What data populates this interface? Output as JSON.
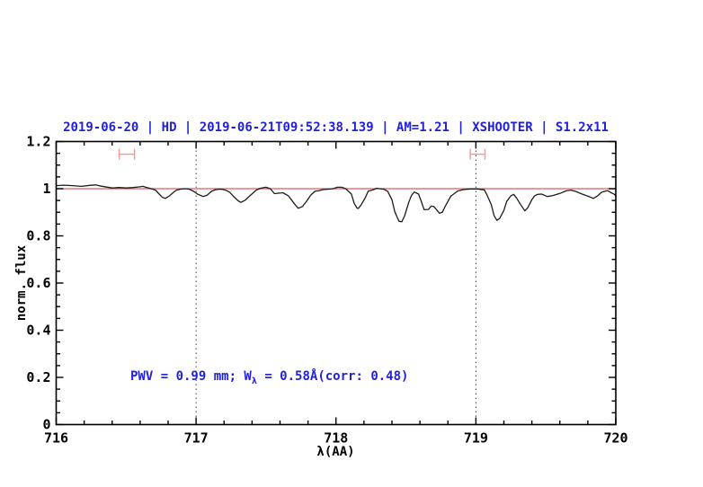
{
  "chart_data": {
    "type": "line",
    "title": "2019-06-20 | HD | 2019-06-21T09:52:38.139 | AM=1.21 | XSHOOTER | S1.2x11",
    "xlabel": "λ(AA)",
    "ylabel": "norm. flux",
    "xlim": [
      716,
      720
    ],
    "ylim": [
      0,
      1.2
    ],
    "x_major_ticks": [
      716,
      717,
      718,
      719,
      720
    ],
    "x_tick_labels": [
      "716",
      "717",
      "718",
      "719",
      "720"
    ],
    "x_minor_step": 0.2,
    "y_major_ticks": [
      0,
      0.2,
      0.4,
      0.6,
      0.8,
      1,
      1.2
    ],
    "y_tick_labels": [
      "0",
      "0.2",
      "0.4",
      "0.6",
      "0.8",
      "1",
      "1.2"
    ],
    "y_minor_step": 0.05,
    "grid": "off",
    "dotted_guides_x": [
      717,
      719
    ],
    "reference_line_y": 1.0,
    "band_markers": [
      {
        "x_start": 716.45,
        "x_end": 716.56,
        "y": 1.146,
        "cap_half_height": 0.023
      },
      {
        "x_start": 718.96,
        "x_end": 719.065,
        "y": 1.146,
        "cap_half_height": 0.023
      }
    ],
    "annotation": {
      "prefix": "PWV = 0.99 mm; W",
      "subscript": "λ",
      "suffix": " = 0.58Å(corr: 0.48)"
    },
    "colors": {
      "title_text": "#2121d9",
      "annotation_text": "#2121d9",
      "spectrum": "#1c1c1c",
      "reference_line": "#e05c5c",
      "band_marker": "#f29c9c",
      "axis": "#000000",
      "guide": "#3c3c3c"
    },
    "series": [
      {
        "name": "spectrum",
        "points": [
          [
            716.0,
            1.013
          ],
          [
            716.05,
            1.015
          ],
          [
            716.12,
            1.013
          ],
          [
            716.18,
            1.01
          ],
          [
            716.24,
            1.014
          ],
          [
            716.28,
            1.016
          ],
          [
            716.31,
            1.012
          ],
          [
            716.36,
            1.007
          ],
          [
            716.4,
            1.003
          ],
          [
            716.45,
            1.005
          ],
          [
            716.5,
            1.003
          ],
          [
            716.55,
            1.005
          ],
          [
            716.6,
            1.008
          ],
          [
            716.62,
            1.01
          ],
          [
            716.64,
            1.006
          ],
          [
            716.68,
            1.0
          ],
          [
            716.71,
            0.994
          ],
          [
            716.73,
            0.981
          ],
          [
            716.76,
            0.963
          ],
          [
            716.78,
            0.959
          ],
          [
            716.81,
            0.97
          ],
          [
            716.84,
            0.985
          ],
          [
            716.86,
            0.994
          ],
          [
            716.89,
            0.998
          ],
          [
            716.92,
            1.0
          ],
          [
            716.95,
            0.998
          ],
          [
            716.98,
            0.99
          ],
          [
            717.01,
            0.977
          ],
          [
            717.05,
            0.967
          ],
          [
            717.08,
            0.973
          ],
          [
            717.11,
            0.989
          ],
          [
            717.14,
            0.996
          ],
          [
            717.18,
            0.998
          ],
          [
            717.21,
            0.994
          ],
          [
            717.24,
            0.985
          ],
          [
            717.27,
            0.966
          ],
          [
            717.3,
            0.949
          ],
          [
            717.32,
            0.942
          ],
          [
            717.35,
            0.951
          ],
          [
            717.39,
            0.973
          ],
          [
            717.43,
            0.994
          ],
          [
            717.46,
            1.002
          ],
          [
            717.5,
            1.006
          ],
          [
            717.53,
            1.0
          ],
          [
            717.56,
            0.979
          ],
          [
            717.59,
            0.981
          ],
          [
            717.62,
            0.983
          ],
          [
            717.66,
            0.97
          ],
          [
            717.7,
            0.938
          ],
          [
            717.73,
            0.917
          ],
          [
            717.76,
            0.924
          ],
          [
            717.79,
            0.947
          ],
          [
            717.82,
            0.973
          ],
          [
            717.85,
            0.989
          ],
          [
            717.88,
            0.992
          ],
          [
            717.91,
            0.996
          ],
          [
            717.95,
            0.998
          ],
          [
            717.98,
            1.0
          ],
          [
            718.01,
            1.006
          ],
          [
            718.04,
            1.006
          ],
          [
            718.07,
            1.0
          ],
          [
            718.11,
            0.977
          ],
          [
            718.13,
            0.938
          ],
          [
            718.15,
            0.918
          ],
          [
            718.16,
            0.916
          ],
          [
            718.18,
            0.932
          ],
          [
            718.21,
            0.962
          ],
          [
            718.23,
            0.989
          ],
          [
            718.27,
            0.996
          ],
          [
            718.29,
            1.002
          ],
          [
            718.31,
            1.0
          ],
          [
            718.34,
            0.998
          ],
          [
            718.37,
            0.989
          ],
          [
            718.4,
            0.953
          ],
          [
            718.42,
            0.903
          ],
          [
            718.45,
            0.862
          ],
          [
            718.47,
            0.86
          ],
          [
            718.49,
            0.884
          ],
          [
            718.52,
            0.942
          ],
          [
            718.54,
            0.972
          ],
          [
            718.56,
            0.986
          ],
          [
            718.59,
            0.977
          ],
          [
            718.61,
            0.945
          ],
          [
            718.63,
            0.911
          ],
          [
            718.66,
            0.912
          ],
          [
            718.68,
            0.926
          ],
          [
            718.7,
            0.924
          ],
          [
            718.74,
            0.896
          ],
          [
            718.76,
            0.9
          ],
          [
            718.78,
            0.924
          ],
          [
            718.82,
            0.968
          ],
          [
            718.87,
            0.99
          ],
          [
            718.91,
            0.996
          ],
          [
            718.96,
            0.999
          ],
          [
            719.01,
            0.999
          ],
          [
            719.06,
            0.995
          ],
          [
            719.08,
            0.973
          ],
          [
            719.11,
            0.932
          ],
          [
            719.13,
            0.886
          ],
          [
            719.15,
            0.866
          ],
          [
            719.17,
            0.874
          ],
          [
            719.2,
            0.908
          ],
          [
            719.22,
            0.946
          ],
          [
            719.25,
            0.97
          ],
          [
            719.27,
            0.976
          ],
          [
            719.29,
            0.961
          ],
          [
            719.32,
            0.932
          ],
          [
            719.35,
            0.906
          ],
          [
            719.37,
            0.919
          ],
          [
            719.4,
            0.953
          ],
          [
            719.42,
            0.97
          ],
          [
            719.44,
            0.976
          ],
          [
            719.47,
            0.977
          ],
          [
            719.51,
            0.967
          ],
          [
            719.55,
            0.971
          ],
          [
            719.6,
            0.98
          ],
          [
            719.65,
            0.992
          ],
          [
            719.68,
            0.994
          ],
          [
            719.71,
            0.989
          ],
          [
            719.76,
            0.977
          ],
          [
            719.81,
            0.966
          ],
          [
            719.84,
            0.959
          ],
          [
            719.87,
            0.97
          ],
          [
            719.9,
            0.985
          ],
          [
            719.94,
            0.992
          ],
          [
            719.97,
            0.982
          ],
          [
            719.99,
            0.976
          ],
          [
            720.0,
            0.97
          ]
        ]
      }
    ]
  }
}
